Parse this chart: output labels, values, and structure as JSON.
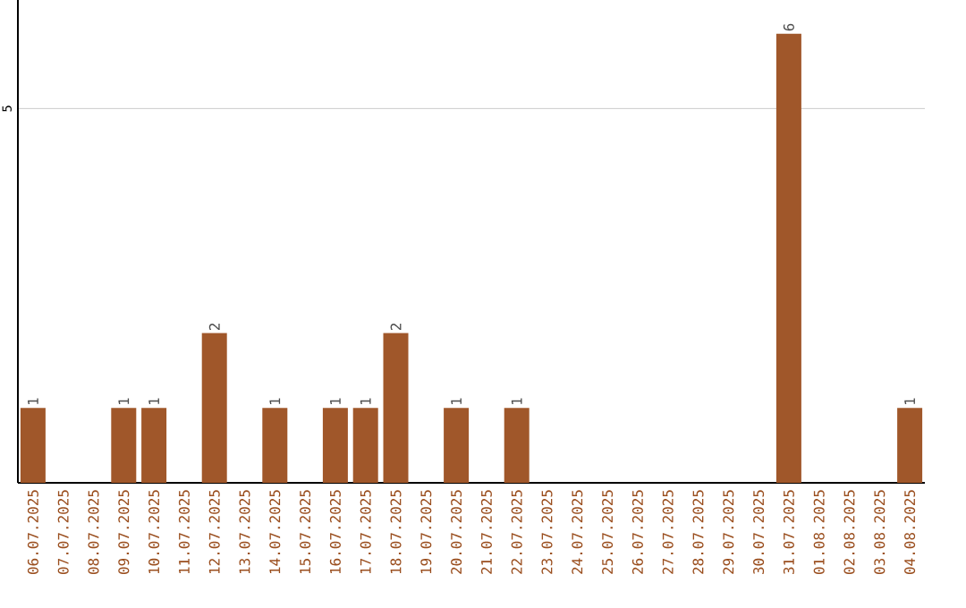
{
  "chart_data": {
    "type": "bar",
    "categories": [
      "06.07.2025",
      "07.07.2025",
      "08.07.2025",
      "09.07.2025",
      "10.07.2025",
      "11.07.2025",
      "12.07.2025",
      "13.07.2025",
      "14.07.2025",
      "15.07.2025",
      "16.07.2025",
      "17.07.2025",
      "18.07.2025",
      "19.07.2025",
      "20.07.2025",
      "21.07.2025",
      "22.07.2025",
      "23.07.2025",
      "24.07.2025",
      "25.07.2025",
      "26.07.2025",
      "27.07.2025",
      "28.07.2025",
      "29.07.2025",
      "30.07.2025",
      "31.07.2025",
      "01.08.2025",
      "02.08.2025",
      "03.08.2025",
      "04.08.2025"
    ],
    "values": [
      1,
      0,
      0,
      1,
      1,
      0,
      2,
      0,
      1,
      0,
      1,
      1,
      2,
      0,
      1,
      0,
      1,
      0,
      0,
      0,
      0,
      0,
      0,
      0,
      0,
      6,
      0,
      0,
      0,
      1
    ],
    "value_labels": [
      "1",
      null,
      null,
      "1",
      "1",
      null,
      "2",
      null,
      "1",
      null,
      "1",
      "1",
      "2",
      null,
      "1",
      null,
      "1",
      null,
      null,
      null,
      null,
      null,
      null,
      null,
      null,
      "6",
      null,
      null,
      null,
      "1"
    ],
    "color": "#a0572a",
    "ylim": [
      0,
      6.45
    ],
    "yticks": [
      5
    ],
    "grid": "y"
  }
}
